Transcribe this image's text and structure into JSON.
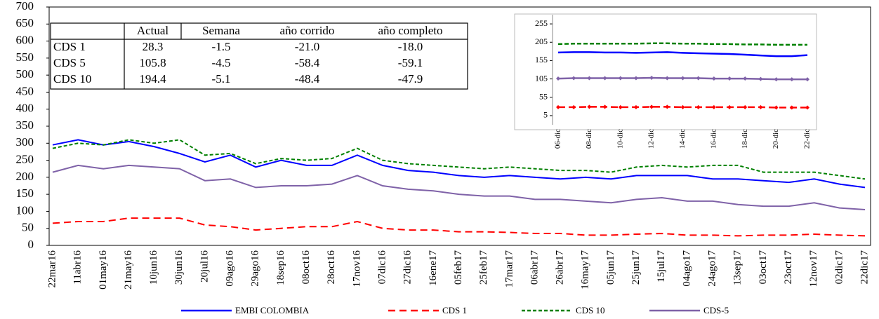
{
  "chart_data": [
    {
      "type": "line",
      "categories": [
        "22mar16",
        "11abr16",
        "01may16",
        "21may16",
        "10jun16",
        "30jun16",
        "20jul16",
        "09ago16",
        "29ago16",
        "18sep16",
        "08oct16",
        "28oct16",
        "17nov16",
        "07dic16",
        "27dic16",
        "16ene17",
        "05feb17",
        "25feb17",
        "17mar17",
        "06abr17",
        "26abr17",
        "16may17",
        "05jun17",
        "25jun17",
        "15jul17",
        "04ago17",
        "24ago17",
        "13sep17",
        "03oct17",
        "23oct17",
        "12nov17",
        "02dic17",
        "22dic17"
      ],
      "series": [
        {
          "name": "EMBI COLOMBIA",
          "color": "#0000ff",
          "dash": "none",
          "values": [
            295,
            310,
            295,
            305,
            290,
            270,
            245,
            265,
            230,
            250,
            235,
            235,
            265,
            235,
            220,
            215,
            205,
            200,
            205,
            200,
            195,
            200,
            195,
            205,
            205,
            205,
            195,
            195,
            190,
            185,
            195,
            180,
            170
          ]
        },
        {
          "name": "CDS 1",
          "color": "#ff0000",
          "dash": "10,6",
          "values": [
            65,
            70,
            70,
            80,
            80,
            80,
            60,
            55,
            45,
            50,
            55,
            55,
            70,
            50,
            45,
            45,
            40,
            40,
            38,
            35,
            35,
            30,
            30,
            33,
            35,
            30,
            30,
            28,
            30,
            30,
            33,
            30,
            28
          ]
        },
        {
          "name": "CDS 10",
          "color": "#008000",
          "dash": "5,3",
          "values": [
            285,
            300,
            295,
            310,
            300,
            310,
            265,
            270,
            240,
            255,
            250,
            255,
            285,
            250,
            240,
            235,
            230,
            225,
            230,
            225,
            220,
            220,
            215,
            230,
            235,
            230,
            235,
            235,
            215,
            215,
            215,
            205,
            195
          ]
        },
        {
          "name": "CDS-5",
          "color": "#7f62a8",
          "dash": "none",
          "values": [
            215,
            235,
            225,
            235,
            230,
            225,
            190,
            195,
            170,
            175,
            175,
            180,
            205,
            175,
            165,
            160,
            150,
            145,
            145,
            135,
            135,
            130,
            125,
            135,
            140,
            130,
            130,
            120,
            115,
            115,
            125,
            110,
            105
          ]
        }
      ],
      "ylim": [
        0,
        700
      ],
      "yticks": [
        0,
        50,
        100,
        150,
        200,
        250,
        300,
        350,
        400,
        450,
        500,
        550,
        600,
        650,
        700
      ]
    },
    {
      "type": "line",
      "categories": [
        "06-dic",
        null,
        "08-dic",
        null,
        "10-dic",
        null,
        "12-dic",
        null,
        "14-dic",
        null,
        "16-dic",
        null,
        "18-dic",
        null,
        "20-dic",
        null,
        "22-dic"
      ],
      "series": [
        {
          "color": "#0000ff",
          "dash": "none",
          "values": [
            177,
            178,
            178,
            177,
            177,
            176,
            177,
            178,
            176,
            175,
            174,
            173,
            171,
            169,
            167,
            167,
            170
          ]
        },
        {
          "color": "#008000",
          "dash": "6,3",
          "values": [
            200,
            201,
            201,
            201,
            201,
            201,
            202,
            202,
            201,
            201,
            200,
            200,
            199,
            199,
            198,
            198,
            198
          ]
        },
        {
          "color": "#7f62a8",
          "dash": "none",
          "markers": true,
          "values": [
            106,
            107,
            107,
            107,
            107,
            107,
            108,
            107,
            107,
            107,
            106,
            106,
            106,
            105,
            104,
            104,
            104
          ]
        },
        {
          "color": "#ff0000",
          "dash": "10,5",
          "markers": true,
          "values": [
            28,
            28,
            29,
            29,
            28,
            28,
            29,
            29,
            28,
            28,
            28,
            28,
            28,
            28,
            27,
            27,
            27
          ]
        }
      ],
      "ylim": [
        -20,
        280
      ],
      "yticks": [
        5,
        55,
        105,
        155,
        205,
        255
      ]
    }
  ],
  "table": {
    "columns": [
      "Actual",
      "Semana",
      "año corrido",
      "año completo"
    ],
    "rows": [
      [
        "CDS 1",
        "28.3",
        "-1.5",
        "-21.0",
        "-18.0"
      ],
      [
        "CDS 5",
        "105.8",
        "-4.5",
        "-58.4",
        "-59.1"
      ],
      [
        "CDS 10",
        "194.4",
        "-5.1",
        "-48.4",
        "-47.9"
      ]
    ]
  }
}
